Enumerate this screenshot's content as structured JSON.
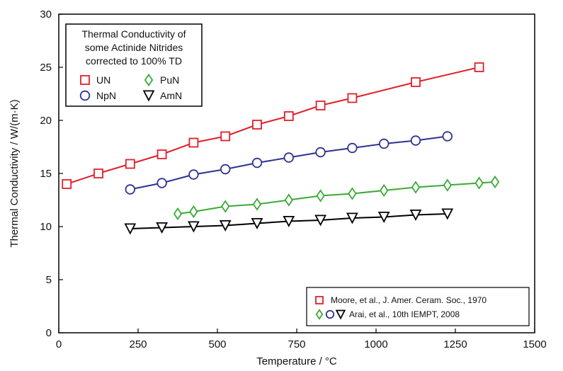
{
  "chart_data": {
    "type": "line",
    "xlabel": "Temperature / °C",
    "ylabel": "Thermal Conductivity / W/(m·K)",
    "xlim": [
      0,
      1500
    ],
    "ylim": [
      0,
      30
    ],
    "xticks": [
      0,
      250,
      500,
      750,
      1000,
      1250,
      1500
    ],
    "yticks": [
      0,
      5,
      10,
      15,
      20,
      25,
      30
    ],
    "grid": false,
    "legend_title": [
      "Thermal Conductivity of",
      "some Actinide Nitrides",
      "corrected to 100% TD"
    ],
    "legend_placement": "top-left",
    "series": [
      {
        "name": "UN",
        "marker": "square",
        "color": "#e0202a",
        "x": [
          25,
          125,
          225,
          325,
          425,
          525,
          625,
          725,
          825,
          925,
          1125,
          1325
        ],
        "y": [
          14.0,
          15.0,
          15.9,
          16.8,
          17.9,
          18.5,
          19.6,
          20.4,
          21.4,
          22.1,
          23.6,
          25.0
        ]
      },
      {
        "name": "NpN",
        "marker": "circle",
        "color": "#2e3192",
        "x": [
          225,
          325,
          425,
          525,
          625,
          725,
          825,
          925,
          1025,
          1125,
          1225
        ],
        "y": [
          13.5,
          14.1,
          14.9,
          15.4,
          16.0,
          16.5,
          17.0,
          17.4,
          17.8,
          18.1,
          18.5
        ]
      },
      {
        "name": "PuN",
        "marker": "diamond",
        "color": "#3aaa35",
        "x": [
          375,
          425,
          525,
          625,
          725,
          825,
          925,
          1025,
          1125,
          1225,
          1325,
          1375
        ],
        "y": [
          11.2,
          11.4,
          11.9,
          12.1,
          12.5,
          12.9,
          13.1,
          13.4,
          13.7,
          13.9,
          14.1,
          14.2
        ]
      },
      {
        "name": "AmN",
        "marker": "triangle-down",
        "color": "#000000",
        "x": [
          225,
          325,
          425,
          525,
          625,
          725,
          825,
          925,
          1025,
          1125,
          1225
        ],
        "y": [
          9.8,
          9.9,
          10.0,
          10.1,
          10.3,
          10.5,
          10.6,
          10.8,
          10.9,
          11.1,
          11.2
        ]
      }
    ],
    "sources": [
      {
        "text": "Moore, et al., J. Amer. Ceram. Soc., 1970",
        "markers": [
          "square"
        ]
      },
      {
        "text": "Arai, et al., 10th IEMPT, 2008",
        "markers": [
          "diamond",
          "circle",
          "triangle-down"
        ]
      }
    ],
    "source_box_placement": "bottom-right"
  }
}
